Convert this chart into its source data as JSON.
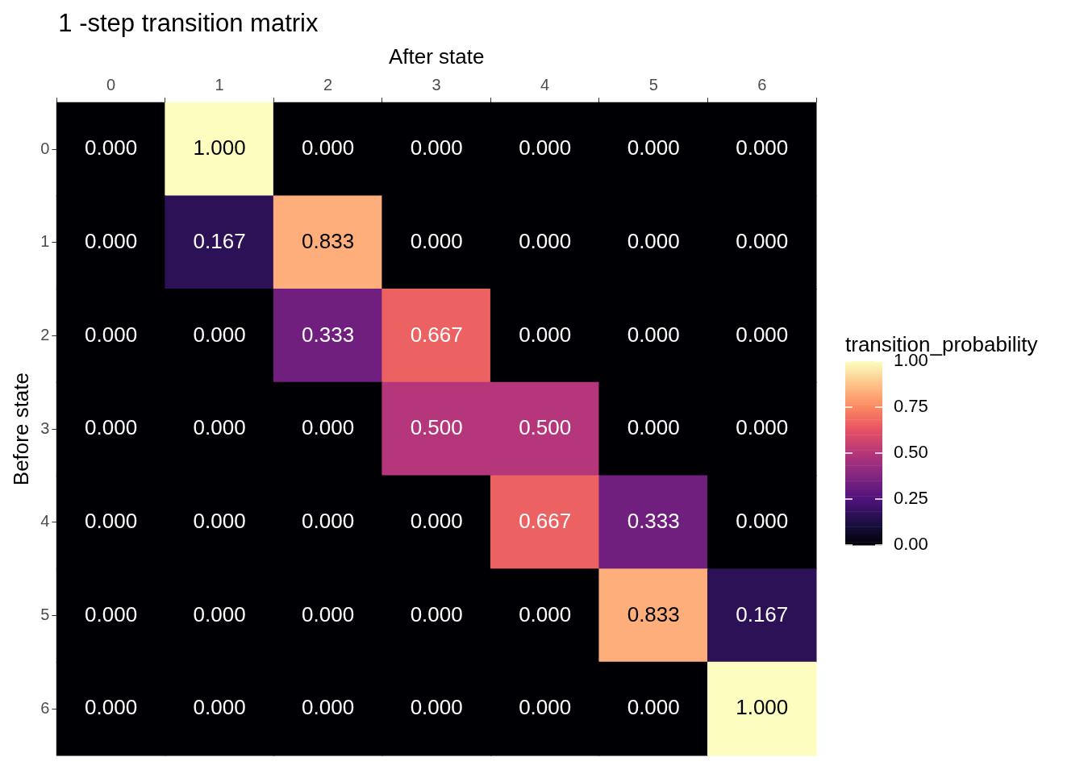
{
  "chart_data": {
    "type": "heatmap",
    "title": "1 -step transition matrix",
    "xlabel": "After state",
    "ylabel": "Before state",
    "clabel": "transition_probability",
    "categories": [
      "0",
      "1",
      "2",
      "3",
      "4",
      "5",
      "6"
    ],
    "y_categories": [
      "0",
      "1",
      "2",
      "3",
      "4",
      "5",
      "6"
    ],
    "cells": [
      [
        0,
        1,
        0,
        0,
        0,
        0,
        0
      ],
      [
        0,
        0.167,
        0.833,
        0,
        0,
        0,
        0
      ],
      [
        0,
        0,
        0.333,
        0.667,
        0,
        0,
        0
      ],
      [
        0,
        0,
        0,
        0.5,
        0.5,
        0,
        0
      ],
      [
        0,
        0,
        0,
        0,
        0.667,
        0.333,
        0
      ],
      [
        0,
        0,
        0,
        0,
        0,
        0.833,
        0.167
      ],
      [
        0,
        0,
        0,
        0,
        0,
        0,
        1
      ]
    ],
    "cell_labels": [
      [
        "0.000",
        "1.000",
        "0.000",
        "0.000",
        "0.000",
        "0.000",
        "0.000"
      ],
      [
        "0.000",
        "0.167",
        "0.833",
        "0.000",
        "0.000",
        "0.000",
        "0.000"
      ],
      [
        "0.000",
        "0.000",
        "0.333",
        "0.667",
        "0.000",
        "0.000",
        "0.000"
      ],
      [
        "0.000",
        "0.000",
        "0.000",
        "0.500",
        "0.500",
        "0.000",
        "0.000"
      ],
      [
        "0.000",
        "0.000",
        "0.000",
        "0.000",
        "0.667",
        "0.333",
        "0.000"
      ],
      [
        "0.000",
        "0.000",
        "0.000",
        "0.000",
        "0.000",
        "0.833",
        "0.167"
      ],
      [
        "0.000",
        "0.000",
        "0.000",
        "0.000",
        "0.000",
        "0.000",
        "1.000"
      ]
    ],
    "clim": [
      0,
      1
    ],
    "cticks": [
      {
        "value": 0,
        "label": "0.00"
      },
      {
        "value": 0.25,
        "label": "0.25"
      },
      {
        "value": 0.5,
        "label": "0.50"
      },
      {
        "value": 0.75,
        "label": "0.75"
      },
      {
        "value": 1,
        "label": "1.00"
      }
    ]
  }
}
